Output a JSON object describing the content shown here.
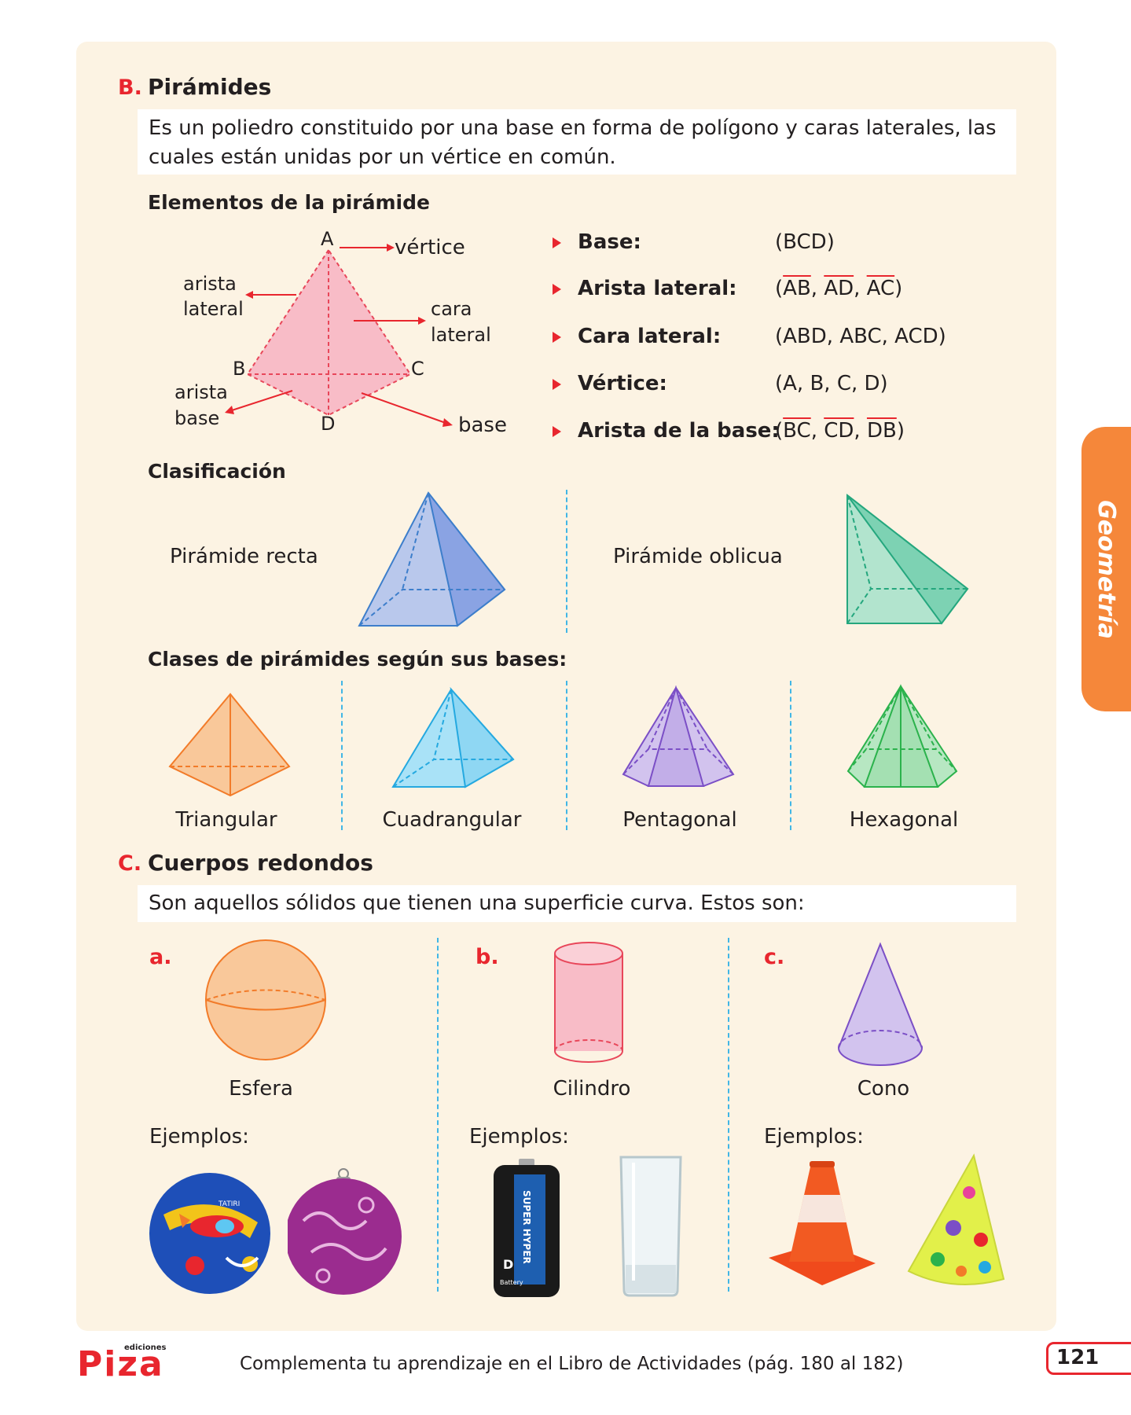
{
  "pyramids": {
    "letter": "B.",
    "title": "Pirámides",
    "definition": "Es un poliedro constituido por una base en forma de polígono y caras laterales, las cuales están unidas por un vértice en común.",
    "elements_heading": "Elementos de la pirámide",
    "diagram_labels": {
      "A": "A",
      "B": "B",
      "C": "C",
      "D": "D",
      "vertice": "vértice",
      "arista_lateral_1": "arista",
      "arista_lateral_2": "lateral",
      "cara_lateral_1": "cara",
      "cara_lateral_2": "lateral",
      "arista_base_1": "arista",
      "arista_base_2": "base",
      "base": "base"
    },
    "elements": [
      {
        "name": "Base:",
        "value": "(BCD)"
      },
      {
        "name": "Arista lateral:",
        "value_parts": [
          "(",
          "AB",
          ", ",
          "AD",
          ", ",
          "AC",
          ")"
        ]
      },
      {
        "name": "Cara lateral:",
        "value": "(ABD, ABC, ACD)"
      },
      {
        "name": "Vértice:",
        "value": "(A, B, C, D)"
      },
      {
        "name": "Arista de la base:",
        "value_parts": [
          "(",
          "BC",
          ", ",
          "CD",
          ", ",
          "DB",
          ")"
        ]
      }
    ],
    "classification_heading": "Clasificación",
    "classification": [
      "Pirámide recta",
      "Pirámide oblicua"
    ],
    "bases_heading": "Clases de pirámides según sus bases:",
    "bases": [
      "Triangular",
      "Cuadrangular",
      "Pentagonal",
      "Hexagonal"
    ]
  },
  "round_bodies": {
    "letter": "C.",
    "title": "Cuerpos redondos",
    "definition": "Son aquellos sólidos que tienen una superficie curva. Estos son:",
    "items": [
      {
        "letter": "a.",
        "name": "Esfera",
        "examples_label": "Ejemplos:"
      },
      {
        "letter": "b.",
        "name": "Cilindro",
        "examples_label": "Ejemplos:"
      },
      {
        "letter": "c.",
        "name": "Cono",
        "examples_label": "Ejemplos:"
      }
    ],
    "battery_text": {
      "brand": "SUPER HYPER",
      "size": "D",
      "word": "Battery"
    },
    "ball_text": "TATIRI"
  },
  "side_tab": "Geometría",
  "footer": {
    "logo": "Piza",
    "logo_small": "ediciones",
    "text": "Complementa tu aprendizaje en el Libro de Actividades (pág. 180 al 182)",
    "page": "121"
  },
  "colors": {
    "accent_red": "#e8262e",
    "panel_bg": "#fcf3e3",
    "tab_orange": "#f5873a",
    "divider_blue": "#41b6e6"
  }
}
